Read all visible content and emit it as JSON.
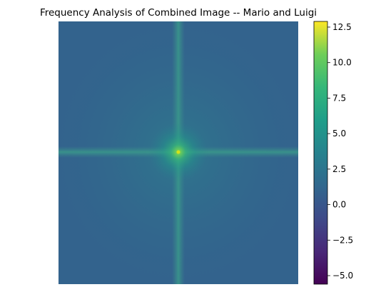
{
  "chart_data": {
    "type": "heatmap",
    "title": "Frequency Analysis of Combined Image -- Mario and Luigi",
    "xlabel": "",
    "ylabel": "",
    "axes_visible": false,
    "grid": false,
    "colormap": "viridis",
    "description_of_values": "log-magnitude spectrum: peak near 12.5 at center, background around 0 to 2",
    "center_peak_value": 12.5,
    "background_value": 0.7,
    "cross_lines_value": 3.0,
    "colorbar": {
      "range": [
        -5.6,
        12.9
      ],
      "ticks": [
        -5.0,
        -2.5,
        0.0,
        2.5,
        5.0,
        7.5,
        10.0,
        12.5
      ],
      "tick_labels": [
        "−5.0",
        "−2.5",
        "0.0",
        "2.5",
        "5.0",
        "7.5",
        "10.0",
        "12.5"
      ]
    }
  }
}
